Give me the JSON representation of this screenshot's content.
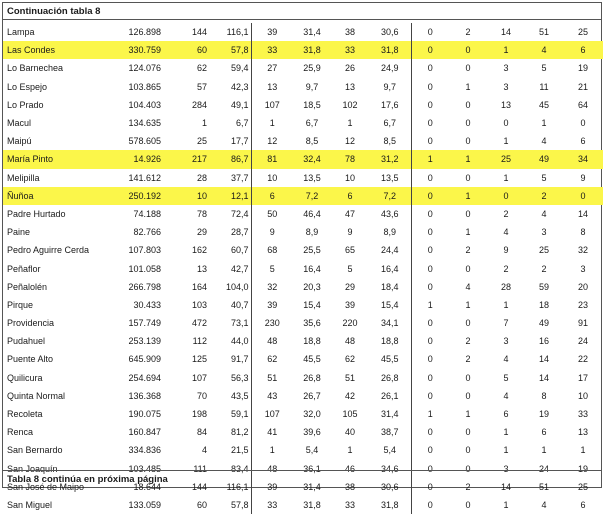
{
  "header": {
    "title": "Continuación tabla 8"
  },
  "footer": {
    "note": "Tabla 8 continúa en próxima página"
  },
  "rows": [
    {
      "name": "Lampa",
      "c1": "126.898",
      "c2": "144",
      "c3": "116,1",
      "c4": "39",
      "c5": "31,4",
      "c6": "38",
      "c7": "30,6",
      "c8": "0",
      "c9": "2",
      "c10": "14",
      "c11": "51",
      "c12": "25",
      "highlight": false
    },
    {
      "name": "Las Condes",
      "c1": "330.759",
      "c2": "60",
      "c3": "57,8",
      "c4": "33",
      "c5": "31,8",
      "c6": "33",
      "c7": "31,8",
      "c8": "0",
      "c9": "0",
      "c10": "1",
      "c11": "4",
      "c12": "6",
      "highlight": true
    },
    {
      "name": "Lo Barnechea",
      "c1": "124.076",
      "c2": "62",
      "c3": "59,4",
      "c4": "27",
      "c5": "25,9",
      "c6": "26",
      "c7": "24,9",
      "c8": "0",
      "c9": "0",
      "c10": "3",
      "c11": "5",
      "c12": "19",
      "highlight": false
    },
    {
      "name": "Lo Espejo",
      "c1": "103.865",
      "c2": "57",
      "c3": "42,3",
      "c4": "13",
      "c5": "9,7",
      "c6": "13",
      "c7": "9,7",
      "c8": "0",
      "c9": "1",
      "c10": "3",
      "c11": "11",
      "c12": "21",
      "highlight": false
    },
    {
      "name": "Lo Prado",
      "c1": "104.403",
      "c2": "284",
      "c3": "49,1",
      "c4": "107",
      "c5": "18,5",
      "c6": "102",
      "c7": "17,6",
      "c8": "0",
      "c9": "0",
      "c10": "13",
      "c11": "45",
      "c12": "64",
      "highlight": false
    },
    {
      "name": "Macul",
      "c1": "134.635",
      "c2": "1",
      "c3": "6,7",
      "c4": "1",
      "c5": "6,7",
      "c6": "1",
      "c7": "6,7",
      "c8": "0",
      "c9": "0",
      "c10": "0",
      "c11": "1",
      "c12": "0",
      "highlight": false
    },
    {
      "name": "Maipú",
      "c1": "578.605",
      "c2": "25",
      "c3": "17,7",
      "c4": "12",
      "c5": "8,5",
      "c6": "12",
      "c7": "8,5",
      "c8": "0",
      "c9": "0",
      "c10": "1",
      "c11": "4",
      "c12": "6",
      "highlight": false
    },
    {
      "name": "María Pinto",
      "c1": "14.926",
      "c2": "217",
      "c3": "86,7",
      "c4": "81",
      "c5": "32,4",
      "c6": "78",
      "c7": "31,2",
      "c8": "1",
      "c9": "1",
      "c10": "25",
      "c11": "49",
      "c12": "34",
      "highlight": true
    },
    {
      "name": "Melipilla",
      "c1": "141.612",
      "c2": "28",
      "c3": "37,7",
      "c4": "10",
      "c5": "13,5",
      "c6": "10",
      "c7": "13,5",
      "c8": "0",
      "c9": "0",
      "c10": "1",
      "c11": "5",
      "c12": "9",
      "highlight": false
    },
    {
      "name": "Ñuñoa",
      "c1": "250.192",
      "c2": "10",
      "c3": "12,1",
      "c4": "6",
      "c5": "7,2",
      "c6": "6",
      "c7": "7,2",
      "c8": "0",
      "c9": "1",
      "c10": "0",
      "c11": "2",
      "c12": "0",
      "highlight": true
    },
    {
      "name": "Padre Hurtado",
      "c1": "74.188",
      "c2": "78",
      "c3": "72,4",
      "c4": "50",
      "c5": "46,4",
      "c6": "47",
      "c7": "43,6",
      "c8": "0",
      "c9": "0",
      "c10": "2",
      "c11": "4",
      "c12": "14",
      "highlight": false
    },
    {
      "name": "Paine",
      "c1": "82.766",
      "c2": "29",
      "c3": "28,7",
      "c4": "9",
      "c5": "8,9",
      "c6": "9",
      "c7": "8,9",
      "c8": "0",
      "c9": "1",
      "c10": "4",
      "c11": "3",
      "c12": "8",
      "highlight": false
    },
    {
      "name": "Pedro Aguirre Cerda",
      "c1": "107.803",
      "c2": "162",
      "c3": "60,7",
      "c4": "68",
      "c5": "25,5",
      "c6": "65",
      "c7": "24,4",
      "c8": "0",
      "c9": "2",
      "c10": "9",
      "c11": "25",
      "c12": "32",
      "highlight": false
    },
    {
      "name": "Peñaflor",
      "c1": "101.058",
      "c2": "13",
      "c3": "42,7",
      "c4": "5",
      "c5": "16,4",
      "c6": "5",
      "c7": "16,4",
      "c8": "0",
      "c9": "0",
      "c10": "2",
      "c11": "2",
      "c12": "3",
      "highlight": false
    },
    {
      "name": "Peñalolén",
      "c1": "266.798",
      "c2": "164",
      "c3": "104,0",
      "c4": "32",
      "c5": "20,3",
      "c6": "29",
      "c7": "18,4",
      "c8": "0",
      "c9": "4",
      "c10": "28",
      "c11": "59",
      "c12": "20",
      "highlight": false
    },
    {
      "name": "Pirque",
      "c1": "30.433",
      "c2": "103",
      "c3": "40,7",
      "c4": "39",
      "c5": "15,4",
      "c6": "39",
      "c7": "15,4",
      "c8": "1",
      "c9": "1",
      "c10": "1",
      "c11": "18",
      "c12": "23",
      "highlight": false
    },
    {
      "name": "Providencia",
      "c1": "157.749",
      "c2": "472",
      "c3": "73,1",
      "c4": "230",
      "c5": "35,6",
      "c6": "220",
      "c7": "34,1",
      "c8": "0",
      "c9": "0",
      "c10": "7",
      "c11": "49",
      "c12": "91",
      "highlight": false
    },
    {
      "name": "Pudahuel",
      "c1": "253.139",
      "c2": "112",
      "c3": "44,0",
      "c4": "48",
      "c5": "18,8",
      "c6": "48",
      "c7": "18,8",
      "c8": "0",
      "c9": "2",
      "c10": "3",
      "c11": "16",
      "c12": "24",
      "highlight": false
    },
    {
      "name": "Puente Alto",
      "c1": "645.909",
      "c2": "125",
      "c3": "91,7",
      "c4": "62",
      "c5": "45,5",
      "c6": "62",
      "c7": "45,5",
      "c8": "0",
      "c9": "2",
      "c10": "4",
      "c11": "14",
      "c12": "22",
      "highlight": false
    },
    {
      "name": "Quilicura",
      "c1": "254.694",
      "c2": "107",
      "c3": "56,3",
      "c4": "51",
      "c5": "26,8",
      "c6": "51",
      "c7": "26,8",
      "c8": "0",
      "c9": "0",
      "c10": "5",
      "c11": "14",
      "c12": "17",
      "highlight": false
    },
    {
      "name": "Quinta Normal",
      "c1": "136.368",
      "c2": "70",
      "c3": "43,5",
      "c4": "43",
      "c5": "26,7",
      "c6": "42",
      "c7": "26,1",
      "c8": "0",
      "c9": "0",
      "c10": "4",
      "c11": "8",
      "c12": "10",
      "highlight": false
    },
    {
      "name": "Recoleta",
      "c1": "190.075",
      "c2": "198",
      "c3": "59,1",
      "c4": "107",
      "c5": "32,0",
      "c6": "105",
      "c7": "31,4",
      "c8": "1",
      "c9": "1",
      "c10": "6",
      "c11": "19",
      "c12": "33",
      "highlight": false
    },
    {
      "name": "Renca",
      "c1": "160.847",
      "c2": "84",
      "c3": "81,2",
      "c4": "41",
      "c5": "39,6",
      "c6": "40",
      "c7": "38,7",
      "c8": "0",
      "c9": "0",
      "c10": "1",
      "c11": "6",
      "c12": "13",
      "highlight": false
    },
    {
      "name": "San Bernardo",
      "c1": "334.836",
      "c2": "4",
      "c3": "21,5",
      "c4": "1",
      "c5": "5,4",
      "c6": "1",
      "c7": "5,4",
      "c8": "0",
      "c9": "0",
      "c10": "1",
      "c11": "1",
      "c12": "1",
      "highlight": false
    },
    {
      "name": "San Joaquín",
      "c1": "103.485",
      "c2": "111",
      "c3": "83,4",
      "c4": "48",
      "c5": "36,1",
      "c6": "46",
      "c7": "34,6",
      "c8": "0",
      "c9": "0",
      "c10": "3",
      "c11": "24",
      "c12": "19",
      "highlight": false
    },
    {
      "name": "San José de Maipo",
      "c1": "18.644",
      "c2": "144",
      "c3": "116,1",
      "c4": "39",
      "c5": "31,4",
      "c6": "38",
      "c7": "30,6",
      "c8": "0",
      "c9": "2",
      "c10": "14",
      "c11": "51",
      "c12": "25",
      "highlight": false
    },
    {
      "name": "San Miguel",
      "c1": "133.059",
      "c2": "60",
      "c3": "57,8",
      "c4": "33",
      "c5": "31,8",
      "c6": "33",
      "c7": "31,8",
      "c8": "0",
      "c9": "0",
      "c10": "1",
      "c11": "4",
      "c12": "6",
      "highlight": false
    }
  ],
  "colors": {
    "highlight": "#fbf64a",
    "border": "#555555",
    "text": "#1a1a1a"
  }
}
